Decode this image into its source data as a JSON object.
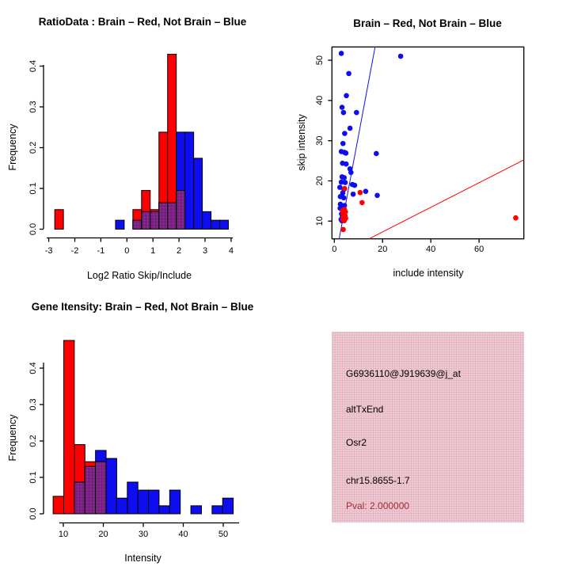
{
  "colors": {
    "red": "#ff0000",
    "blue": "#0d0df0",
    "overlap_purple": "#7a2083",
    "overlap_dot": "#a14fa8",
    "panel_pink": "#f2c8d2",
    "pval_red": "#a52a2a",
    "axis_black": "#000000"
  },
  "chart_data": [
    {
      "id": "ratio_hist",
      "type": "bar",
      "title": "RatioData : Brain – Red, Not Brain – Blue",
      "xlabel": "Log2 Ratio Skip/Include",
      "ylabel": "Frequency",
      "xlim": [
        -3.1,
        4.1
      ],
      "ylim": [
        0,
        0.45
      ],
      "xticks": [
        -3,
        -2,
        -1,
        0,
        1,
        2,
        3,
        4
      ],
      "yticks": [
        "0.0",
        "0.1",
        "0.2",
        "0.3",
        "0.4"
      ],
      "grid": false,
      "binwidth": 0.3333,
      "series": [
        {
          "name": "Brain",
          "color": "#ff0000"
        },
        {
          "name": "Not Brain",
          "color": "#0d0df0"
        }
      ],
      "bars": [
        {
          "x": -2.77,
          "red": 0.048,
          "blue": 0
        },
        {
          "x": -0.437,
          "red": 0,
          "blue": 0.022
        },
        {
          "x": 0.23,
          "red": 0.048,
          "blue": 0.022
        },
        {
          "x": 0.563,
          "red": 0.095,
          "blue": 0.043
        },
        {
          "x": 0.897,
          "red": 0.048,
          "blue": 0.043
        },
        {
          "x": 1.23,
          "red": 0.238,
          "blue": 0.065
        },
        {
          "x": 1.563,
          "red": 0.429,
          "blue": 0.065
        },
        {
          "x": 1.897,
          "red": 0.095,
          "blue": 0.238
        },
        {
          "x": 2.23,
          "red": 0,
          "blue": 0.238
        },
        {
          "x": 2.563,
          "red": 0,
          "blue": 0.174
        },
        {
          "x": 2.897,
          "red": 0,
          "blue": 0.043
        },
        {
          "x": 3.23,
          "red": 0,
          "blue": 0.022
        },
        {
          "x": 3.563,
          "red": 0,
          "blue": 0.022
        }
      ]
    },
    {
      "id": "scatter",
      "type": "scatter",
      "title": "Brain – Red, Not Brain – Blue",
      "xlabel": "include intensity",
      "ylabel": "skip intensity",
      "xlim": [
        -1,
        78.6
      ],
      "ylim": [
        5.6,
        53.3
      ],
      "xticks": [
        0,
        20,
        40,
        60
      ],
      "yticks": [
        10,
        20,
        30,
        40,
        50
      ],
      "grid": false,
      "blue_points": [
        [
          2.9,
          51.7
        ],
        [
          27.5,
          51.0
        ],
        [
          6.0,
          46.7
        ],
        [
          5.0,
          41.2
        ],
        [
          3.2,
          38.3
        ],
        [
          3.8,
          37.0
        ],
        [
          9.2,
          37.0
        ],
        [
          6.5,
          33.1
        ],
        [
          4.3,
          31.8
        ],
        [
          3.6,
          29.3
        ],
        [
          2.9,
          27.3
        ],
        [
          4.2,
          27.1
        ],
        [
          4.8,
          26.9
        ],
        [
          17.4,
          26.8
        ],
        [
          3.4,
          24.4
        ],
        [
          4.9,
          24.2
        ],
        [
          6.5,
          23.0
        ],
        [
          6.9,
          22.1
        ],
        [
          3.2,
          21.0
        ],
        [
          4.1,
          20.8
        ],
        [
          2.9,
          19.7
        ],
        [
          4.5,
          19.6
        ],
        [
          7.5,
          19.1
        ],
        [
          8.4,
          18.9
        ],
        [
          2.3,
          18.4
        ],
        [
          4.0,
          17.9
        ],
        [
          13.0,
          17.4
        ],
        [
          3.5,
          17.0
        ],
        [
          7.8,
          16.7
        ],
        [
          17.8,
          16.4
        ],
        [
          2.5,
          16.1
        ],
        [
          3.9,
          15.8
        ],
        [
          2.5,
          14.2
        ],
        [
          4.2,
          13.9
        ],
        [
          3.0,
          13.4
        ],
        [
          2.4,
          13.2
        ],
        [
          3.5,
          12.4
        ],
        [
          3.0,
          11.8
        ],
        [
          3.3,
          10.9
        ],
        [
          2.8,
          10.4
        ],
        [
          3.1,
          10.1
        ]
      ],
      "red_points": [
        [
          4.3,
          18.1
        ],
        [
          10.7,
          17.1
        ],
        [
          11.5,
          14.6
        ],
        [
          4.2,
          12.9
        ],
        [
          3.4,
          12.6
        ],
        [
          4.6,
          12.3
        ],
        [
          3.6,
          11.9
        ],
        [
          4.4,
          11.4
        ],
        [
          3.8,
          11.0
        ],
        [
          4.7,
          10.7
        ],
        [
          3.5,
          10.4
        ],
        [
          4.1,
          10.1
        ],
        [
          75.2,
          10.8
        ],
        [
          3.7,
          7.9
        ]
      ],
      "lines": [
        {
          "color": "blue",
          "x1": 2.0,
          "y1": 5.6,
          "x2": 16.9,
          "y2": 53.3
        },
        {
          "color": "red",
          "x1": 14.4,
          "y1": 5.6,
          "x2": 78.5,
          "y2": 25.2
        }
      ]
    },
    {
      "id": "gene_hist",
      "type": "bar",
      "title": "Gene Itensity: Brain – Red, Not Brain – Blue",
      "xlabel": "Intensity",
      "ylabel": "Frequency",
      "xlim": [
        7,
        53
      ],
      "ylim": [
        0,
        0.48
      ],
      "xticks": [
        10,
        20,
        30,
        40,
        50
      ],
      "yticks": [
        "0.0",
        "0.1",
        "0.2",
        "0.3",
        "0.4"
      ],
      "grid": false,
      "binwidth": 2.65,
      "series": [
        {
          "name": "Brain",
          "color": "#ff0000"
        },
        {
          "name": "Not Brain",
          "color": "#0d0df0"
        }
      ],
      "bars": [
        {
          "x": 7.45,
          "red": 0.048,
          "blue": 0
        },
        {
          "x": 10.1,
          "red": 0.476,
          "blue": 0
        },
        {
          "x": 12.75,
          "red": 0.19,
          "blue": 0.087
        },
        {
          "x": 15.4,
          "red": 0.143,
          "blue": 0.13
        },
        {
          "x": 18.05,
          "red": 0.143,
          "blue": 0.174
        },
        {
          "x": 20.7,
          "red": 0,
          "blue": 0.152
        },
        {
          "x": 23.35,
          "red": 0,
          "blue": 0.043
        },
        {
          "x": 26.0,
          "red": 0,
          "blue": 0.087
        },
        {
          "x": 28.65,
          "red": 0,
          "blue": 0.065
        },
        {
          "x": 31.3,
          "red": 0,
          "blue": 0.065
        },
        {
          "x": 33.95,
          "red": 0,
          "blue": 0.022
        },
        {
          "x": 36.6,
          "red": 0,
          "blue": 0.065
        },
        {
          "x": 41.9,
          "red": 0,
          "blue": 0.022
        },
        {
          "x": 47.2,
          "red": 0,
          "blue": 0.022
        },
        {
          "x": 49.85,
          "red": 0,
          "blue": 0.043
        }
      ]
    }
  ],
  "panel": {
    "lines": [
      "G6936110@J919639@j_at",
      "altTxEnd",
      "Osr2",
      "chr15.8655-1.7",
      "Pval: 2.000000"
    ]
  }
}
